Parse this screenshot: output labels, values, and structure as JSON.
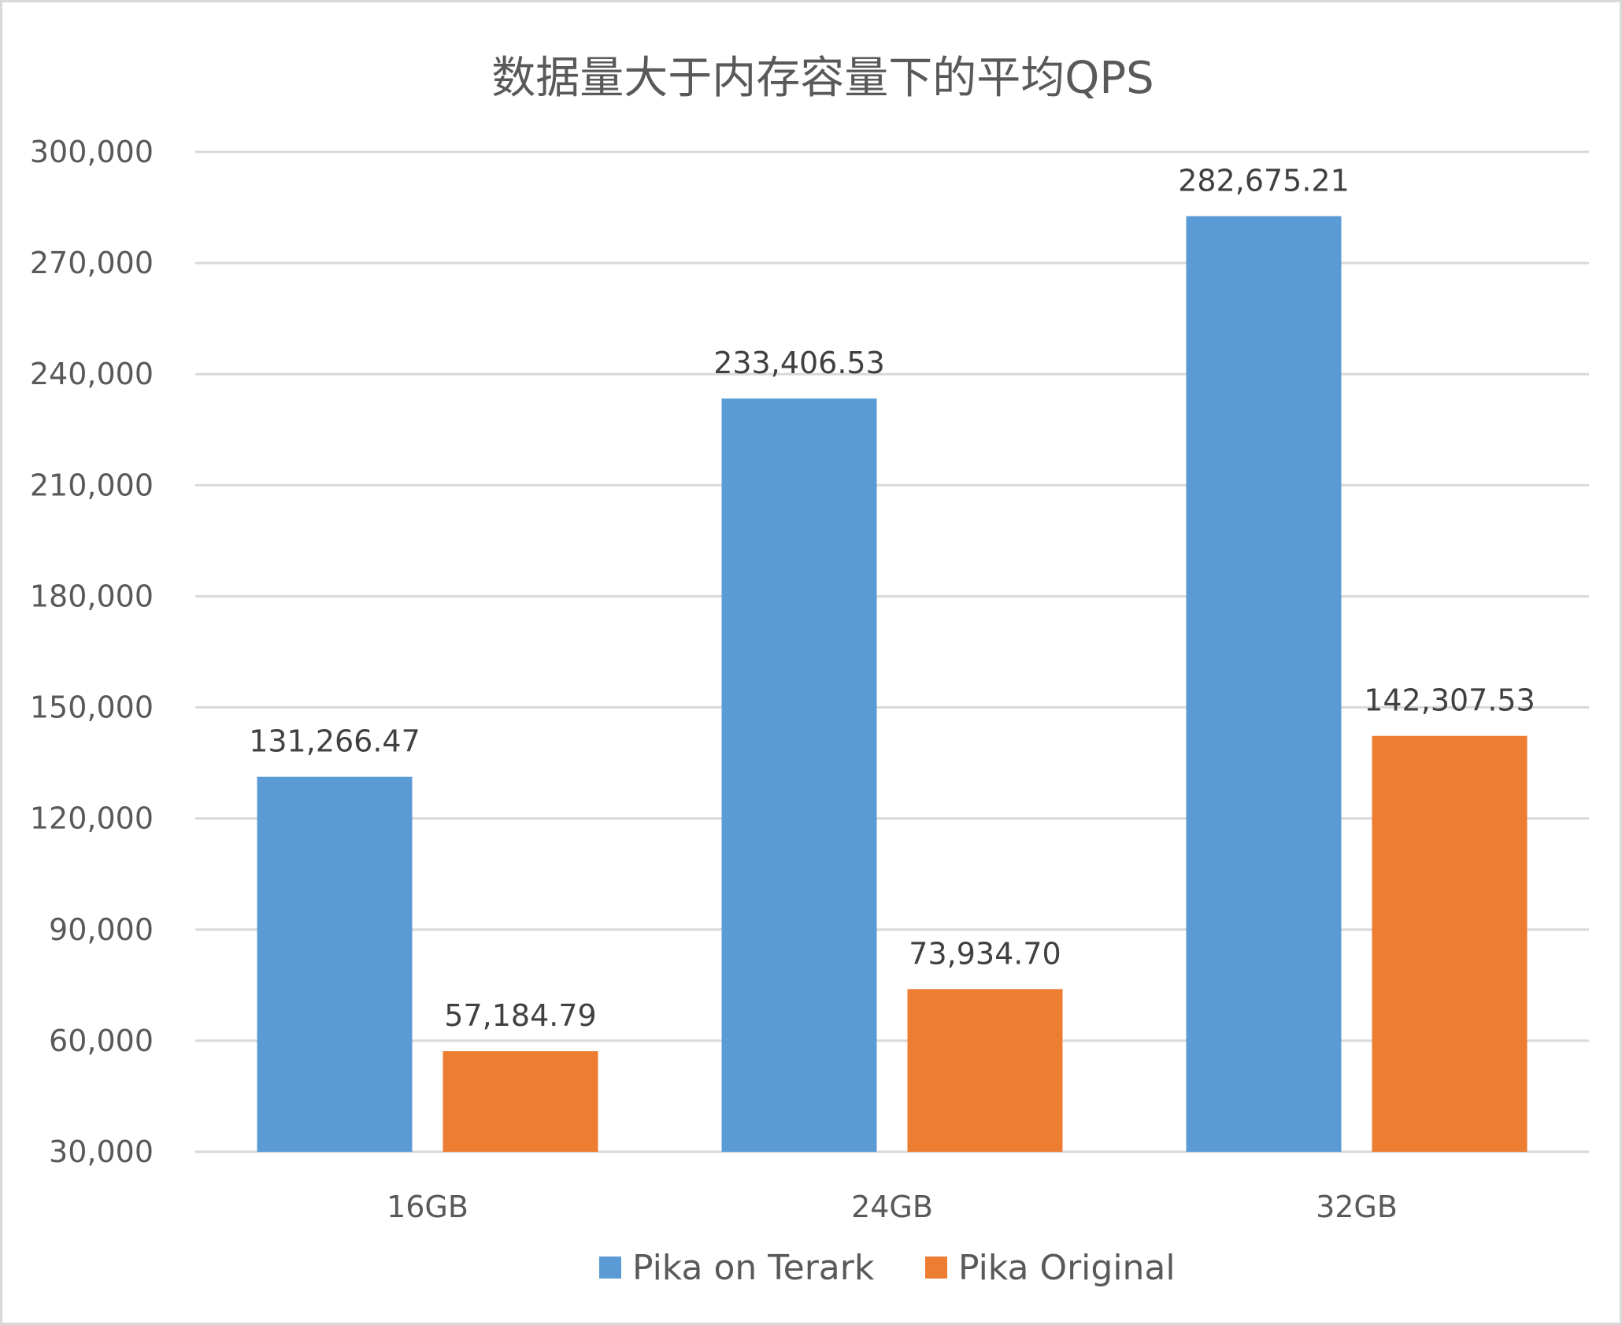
{
  "chart_data": {
    "type": "bar",
    "title": "数据量大于内存容量下的平均QPS",
    "xlabel": "",
    "ylabel": "",
    "categories": [
      "16GB",
      "24GB",
      "32GB"
    ],
    "series": [
      {
        "name": "Pika on Terark",
        "color": "#5b9bd5",
        "values": [
          131266.47,
          233406.53,
          282675.21
        ],
        "labels": [
          "131,266.47",
          "233,406.53",
          "282,675.21"
        ]
      },
      {
        "name": "Pika Original",
        "color": "#ed7d31",
        "values": [
          57184.79,
          73934.7,
          142307.53
        ],
        "labels": [
          "57,184.79",
          "73,934.70",
          "142,307.53"
        ]
      }
    ],
    "ylim": [
      30000,
      300000
    ],
    "yticks": [
      30000,
      60000,
      90000,
      120000,
      150000,
      180000,
      210000,
      240000,
      270000,
      300000
    ],
    "ytick_labels": [
      "30,000",
      "60,000",
      "90,000",
      "120,000",
      "150,000",
      "180,000",
      "210,000",
      "240,000",
      "270,000",
      "300,000"
    ],
    "grid": true,
    "legend_position": "bottom"
  }
}
